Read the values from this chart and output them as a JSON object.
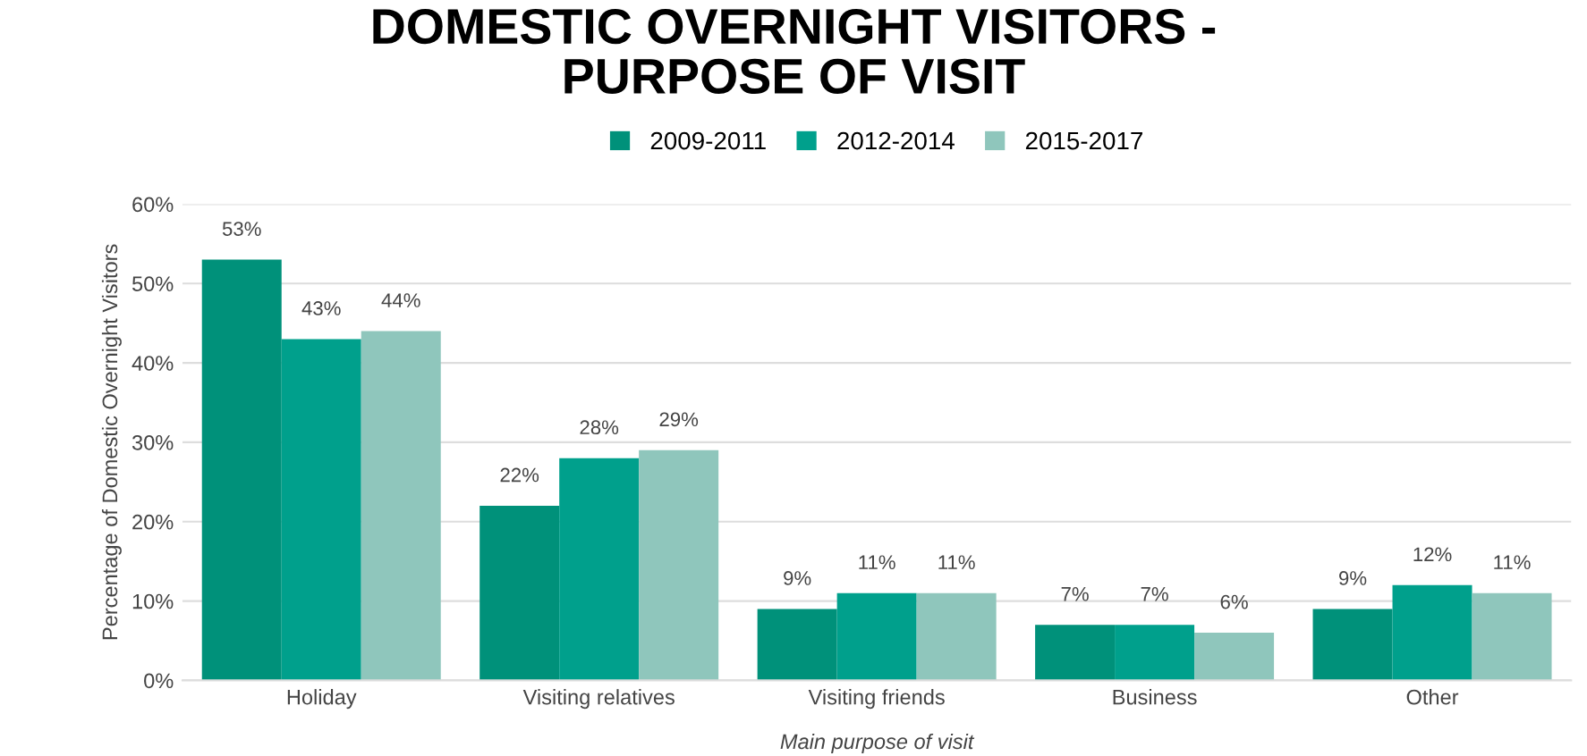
{
  "chart_data": {
    "type": "bar",
    "title": "DOMESTIC OVERNIGHT VISITORS -\nPURPOSE OF VISIT",
    "xlabel": "Main purpose of visit",
    "ylabel": "Percentage of Domestic Overnight Visitors",
    "categories": [
      "Holiday",
      "Visiting relatives",
      "Visiting friends",
      "Business",
      "Other"
    ],
    "series": [
      {
        "name": "2009-2011",
        "color": "#00917a",
        "values": [
          53,
          22,
          9,
          7,
          9
        ],
        "value_labels": [
          "53%",
          "22%",
          "9%",
          "7%",
          "9%"
        ]
      },
      {
        "name": "2012-2014",
        "color": "#00a08c",
        "values": [
          43,
          28,
          11,
          7,
          12
        ],
        "value_labels": [
          "43%",
          "28%",
          "11%",
          "7%",
          "12%"
        ]
      },
      {
        "name": "2015-2017",
        "color": "#8fc6bc",
        "values": [
          44,
          29,
          11,
          6,
          11
        ],
        "value_labels": [
          "44%",
          "29%",
          "11%",
          "6%",
          "11%"
        ]
      }
    ],
    "ylim": [
      0,
      60
    ],
    "yticks": [
      {
        "value": 0,
        "label": "0%"
      },
      {
        "value": 10,
        "label": "10%"
      },
      {
        "value": 20,
        "label": "20%"
      },
      {
        "value": 30,
        "label": "30%"
      },
      {
        "value": 40,
        "label": "40%"
      },
      {
        "value": 50,
        "label": "50%"
      },
      {
        "value": 60,
        "label": "60%"
      }
    ],
    "grid": "y",
    "legend": "top"
  }
}
